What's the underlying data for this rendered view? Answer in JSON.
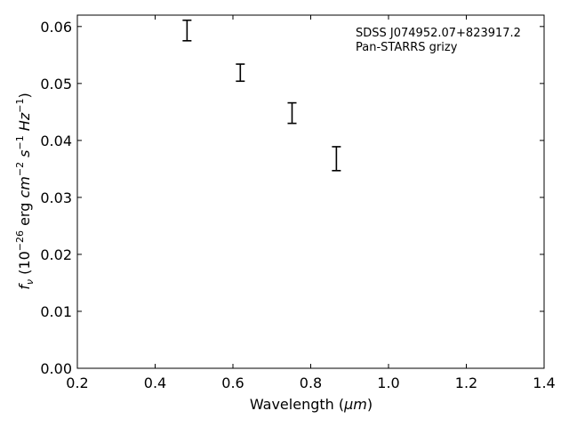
{
  "chart_data": {
    "type": "scatter",
    "x": [
      0.482,
      0.619,
      0.752,
      0.866
    ],
    "y": [
      0.0593,
      0.0519,
      0.0448,
      0.0368
    ],
    "yerr": [
      0.0018,
      0.0015,
      0.0018,
      0.0021
    ],
    "xlabel_prefix": "Wavelength (",
    "xlabel_unit": "μm",
    "xlabel_suffix": ")",
    "ylabel_parts": {
      "f": "f",
      "nu": "ν",
      "open": " (10",
      "exp": "−26",
      "erg": " erg ",
      "cm": "cm",
      "cm_exp": "−2",
      "s": " s",
      "s_exp": "−1",
      "hz": " Hz",
      "hz_exp": "−1",
      "close": ")"
    },
    "xlim": [
      0.2,
      1.4
    ],
    "ylim": [
      0.0,
      0.062
    ],
    "xticks": [
      0.2,
      0.4,
      0.6,
      0.8,
      1.0,
      1.2,
      1.4
    ],
    "xtick_labels": [
      "0.2",
      "0.4",
      "0.6",
      "0.8",
      "1.0",
      "1.2",
      "1.4"
    ],
    "yticks": [
      0.0,
      0.01,
      0.02,
      0.03,
      0.04,
      0.05,
      0.06
    ],
    "ytick_labels": [
      "0.00",
      "0.01",
      "0.02",
      "0.03",
      "0.04",
      "0.05",
      "0.06"
    ],
    "annotations": [
      "SDSS J074952.07+823917.2",
      "Pan-STARRS grizy"
    ],
    "annotation_position": "top-right",
    "grid": false,
    "color": "#000000"
  }
}
